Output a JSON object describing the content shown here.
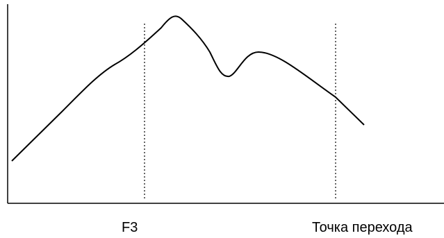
{
  "diagram": {
    "labels": {
      "f3": "F3",
      "transition_point": "Точка перехода"
    },
    "colors": {
      "line": "#000000",
      "background": "#ffffff"
    }
  }
}
